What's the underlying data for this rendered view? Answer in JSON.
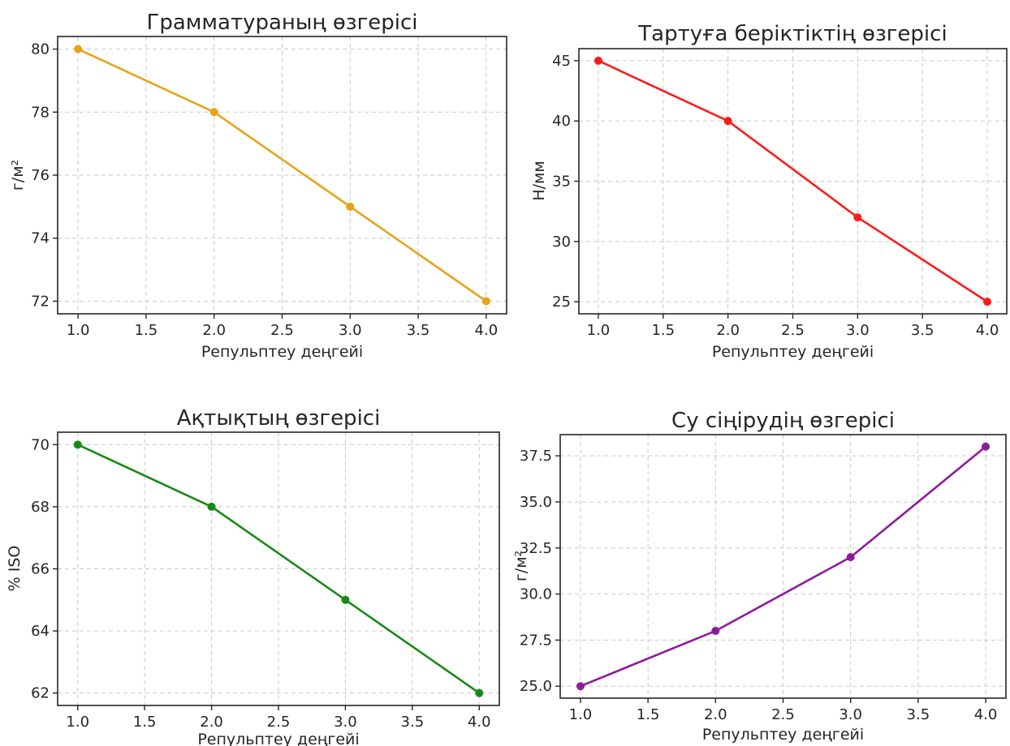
{
  "colors": {
    "grammage": "#E8A317",
    "tensile": "#FF1A1A",
    "whiteness": "#168A16",
    "absorption": "#8E1B9E"
  },
  "chart_data": [
    {
      "type": "line",
      "title": "Грамматураның өзгерісі",
      "xlabel": "Репульптеу деңгейі",
      "ylabel": "г/м²",
      "x": [
        1.0,
        2.0,
        3.0,
        4.0
      ],
      "series": [
        {
          "values": [
            80,
            78,
            75,
            72
          ],
          "color": "#E8A317",
          "marker": "circle"
        }
      ],
      "xlim": [
        0.85,
        4.15
      ],
      "ylim": [
        71.6,
        80.4
      ],
      "xticks": [
        1.0,
        1.5,
        2.0,
        2.5,
        3.0,
        3.5,
        4.0
      ],
      "xtick_labels": [
        "1.0",
        "1.5",
        "2.0",
        "2.5",
        "3.0",
        "3.5",
        "4.0"
      ],
      "yticks": [
        72,
        74,
        76,
        78,
        80
      ],
      "ytick_labels": [
        "72",
        "74",
        "76",
        "78",
        "80"
      ],
      "grid": true
    },
    {
      "type": "line",
      "title": "Тартуға беріктіктің өзгерісі",
      "xlabel": "Репульптеу деңгейі",
      "ylabel": "Н/мм",
      "x": [
        1.0,
        2.0,
        3.0,
        4.0
      ],
      "series": [
        {
          "values": [
            45,
            40,
            32,
            25
          ],
          "color": "#FF1A1A",
          "marker": "circle"
        }
      ],
      "xlim": [
        0.85,
        4.15
      ],
      "ylim": [
        24.0,
        46.0
      ],
      "xticks": [
        1.0,
        1.5,
        2.0,
        2.5,
        3.0,
        3.5,
        4.0
      ],
      "xtick_labels": [
        "1.0",
        "1.5",
        "2.0",
        "2.5",
        "3.0",
        "3.5",
        "4.0"
      ],
      "yticks": [
        25,
        30,
        35,
        40,
        45
      ],
      "ytick_labels": [
        "25",
        "30",
        "35",
        "40",
        "45"
      ],
      "grid": true
    },
    {
      "type": "line",
      "title": "Ақтықтың өзгерісі",
      "xlabel": "Репульптеу деңгейі",
      "ylabel": "% ISO",
      "x": [
        1.0,
        2.0,
        3.0,
        4.0
      ],
      "series": [
        {
          "values": [
            70,
            68,
            65,
            62
          ],
          "color": "#168A16",
          "marker": "circle"
        }
      ],
      "xlim": [
        0.85,
        4.15
      ],
      "ylim": [
        61.6,
        70.4
      ],
      "xticks": [
        1.0,
        1.5,
        2.0,
        2.5,
        3.0,
        3.5,
        4.0
      ],
      "xtick_labels": [
        "1.0",
        "1.5",
        "2.0",
        "2.5",
        "3.0",
        "3.5",
        "4.0"
      ],
      "yticks": [
        62,
        64,
        66,
        68,
        70
      ],
      "ytick_labels": [
        "62",
        "64",
        "66",
        "68",
        "70"
      ],
      "grid": true
    },
    {
      "type": "line",
      "title": "Су сіңірудің өзгерісі",
      "xlabel": "Репульптеу деңгейі",
      "ylabel": "г/м²",
      "x": [
        1.0,
        2.0,
        3.0,
        4.0
      ],
      "series": [
        {
          "values": [
            25,
            28,
            32,
            38
          ],
          "color": "#8E1B9E",
          "marker": "circle"
        }
      ],
      "xlim": [
        0.85,
        4.15
      ],
      "ylim": [
        24.35,
        38.65
      ],
      "xticks": [
        1.0,
        1.5,
        2.0,
        2.5,
        3.0,
        3.5,
        4.0
      ],
      "xtick_labels": [
        "1.0",
        "1.5",
        "2.0",
        "2.5",
        "3.0",
        "3.5",
        "4.0"
      ],
      "yticks": [
        25.0,
        27.5,
        30.0,
        32.5,
        35.0,
        37.5
      ],
      "ytick_labels": [
        "25.0",
        "27.5",
        "30.0",
        "32.5",
        "35.0",
        "37.5"
      ],
      "grid": true
    }
  ]
}
